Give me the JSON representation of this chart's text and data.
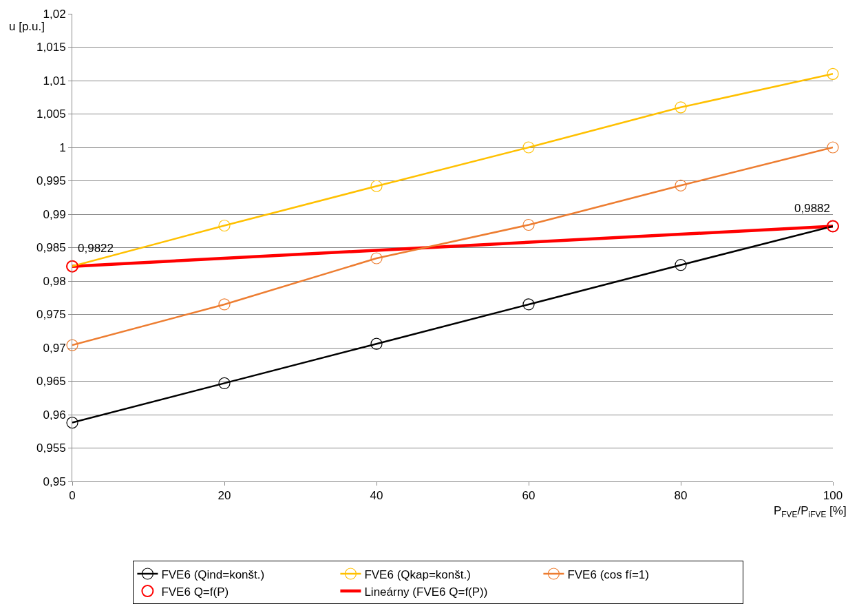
{
  "chart_data": {
    "type": "line",
    "xlabel": "P$_{FVE}$/P$_{iFVE}$ [%]",
    "ylabel": "u [p.u.]",
    "xlim": [
      0,
      100
    ],
    "xticks": [
      0,
      20,
      40,
      60,
      80,
      100
    ],
    "ylim": [
      0.95,
      1.02
    ],
    "yticks": [
      {
        "value": 0.95,
        "label": "0,95"
      },
      {
        "value": 0.955,
        "label": "0,955"
      },
      {
        "value": 0.96,
        "label": "0,96"
      },
      {
        "value": 0.965,
        "label": "0,965"
      },
      {
        "value": 0.97,
        "label": "0,97"
      },
      {
        "value": 0.975,
        "label": "0,975"
      },
      {
        "value": 0.98,
        "label": "0,98"
      },
      {
        "value": 0.985,
        "label": "0,985"
      },
      {
        "value": 0.99,
        "label": "0,99"
      },
      {
        "value": 0.995,
        "label": "0,995"
      },
      {
        "value": 1,
        "label": "1"
      },
      {
        "value": 1.005,
        "label": "1,005"
      },
      {
        "value": 1.01,
        "label": "1,01"
      },
      {
        "value": 1.015,
        "label": "1,015"
      },
      {
        "value": 1.02,
        "label": "1,02"
      }
    ],
    "grid": "y",
    "legend": "bottom",
    "line_style": "solid",
    "x": [
      0,
      20,
      40,
      60,
      80,
      100
    ],
    "series": [
      {
        "name": "FVE6 (Qind=konšt.)",
        "color": "#000000",
        "marker": "circle",
        "values": [
          0.9588,
          0.9647,
          0.9706,
          0.9765,
          0.9824,
          0.9882
        ]
      },
      {
        "name": "FVE6 (Qkap=konšt.)",
        "color": "#ffc000",
        "marker": "circle",
        "values": [
          0.9822,
          0.9883,
          0.9942,
          1.0,
          1.006,
          1.011
        ]
      },
      {
        "name": "FVE6 (cos fí=1)",
        "color": "#ed7d31",
        "marker": "circle",
        "values": [
          0.9704,
          0.9765,
          0.9834,
          0.9884,
          0.9943,
          1.0
        ]
      },
      {
        "name": "FVE6 Q=f(P)",
        "type": "scatter",
        "color": "#ff0000",
        "marker": "circle",
        "values": [
          0.9822,
          null,
          null,
          null,
          null,
          0.9882
        ]
      },
      {
        "name": "Lineárny (FVE6 Q=f(P))",
        "color": "#ff0000",
        "marker": "none",
        "x": [
          0,
          100
        ],
        "values": [
          0.9822,
          0.9882
        ]
      }
    ],
    "annotations": [
      {
        "text": "0,9822",
        "x": 0,
        "y": 0.9822
      },
      {
        "text": "0,9882",
        "x": 100,
        "y": 0.9882
      }
    ]
  }
}
